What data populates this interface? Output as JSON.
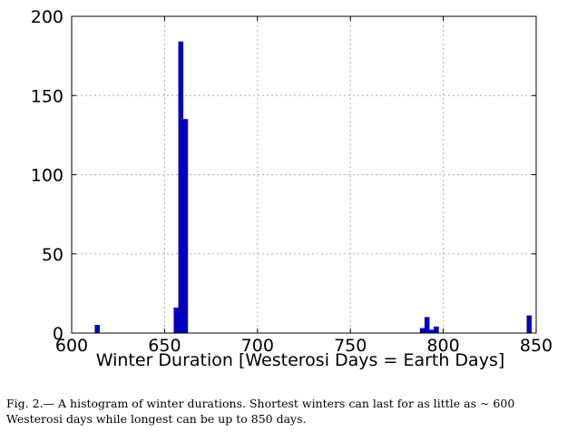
{
  "chart_data": {
    "type": "bar",
    "title": "",
    "xlabel": "Winter Duration [Westerosi Days = Earth Days]",
    "ylabel": "",
    "xlim": [
      600,
      850
    ],
    "ylim": [
      0,
      200
    ],
    "xticks": [
      "600",
      "650",
      "700",
      "750",
      "800",
      "850"
    ],
    "yticks": [
      "0",
      "50",
      "100",
      "150",
      "200"
    ],
    "grid": true,
    "color": "#0000cc",
    "bin_width": 2.5,
    "bins": [
      {
        "x": 613.75,
        "value": 5
      },
      {
        "x": 656.25,
        "value": 16
      },
      {
        "x": 658.75,
        "value": 184
      },
      {
        "x": 661.25,
        "value": 135
      },
      {
        "x": 788.75,
        "value": 3
      },
      {
        "x": 791.25,
        "value": 10
      },
      {
        "x": 793.75,
        "value": 2
      },
      {
        "x": 796.25,
        "value": 4
      },
      {
        "x": 846.25,
        "value": 11
      }
    ]
  },
  "caption": {
    "text": "Fig. 2.— A histogram of winter durations. Shortest winters can last for as little as ∼ 600 Westerosi days while longest can be up to 850 days."
  }
}
